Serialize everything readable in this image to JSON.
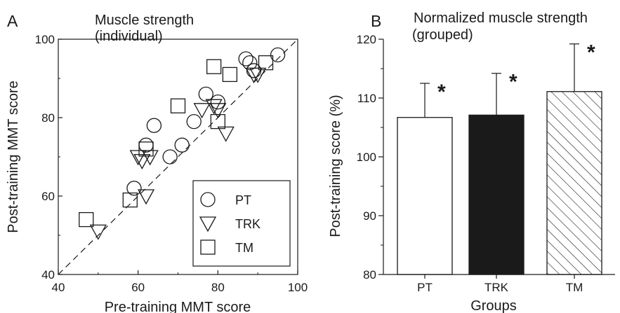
{
  "chart_data": [
    {
      "panel": "A",
      "type": "scatter",
      "title": "Muscle strength",
      "subtitle": "(individual)",
      "xlabel": "Pre-training MMT score",
      "ylabel": "Post-training MMT score",
      "xlim": [
        40,
        100
      ],
      "ylim": [
        40,
        100
      ],
      "xticks": [
        "40",
        "60",
        "80",
        "100"
      ],
      "yticks": [
        "40",
        "60",
        "80",
        "100"
      ],
      "identity_line": true,
      "legend_position": "bottom-right",
      "series": [
        {
          "name": "PT",
          "marker": "circle",
          "points": [
            [
              59,
              62
            ],
            [
              62,
              73
            ],
            [
              64,
              78
            ],
            [
              68,
              70
            ],
            [
              71,
              73
            ],
            [
              74,
              79
            ],
            [
              77,
              86
            ],
            [
              80,
              84
            ],
            [
              87,
              95
            ],
            [
              88,
              94
            ],
            [
              89,
              92
            ],
            [
              95,
              96
            ]
          ]
        },
        {
          "name": "TRK",
          "marker": "triangle-down",
          "points": [
            [
              50,
              51
            ],
            [
              60,
              70
            ],
            [
              61,
              69
            ],
            [
              62,
              60
            ],
            [
              63,
              70
            ],
            [
              76,
              82
            ],
            [
              79,
              83
            ],
            [
              80,
              82
            ],
            [
              82,
              76
            ],
            [
              89,
              91
            ],
            [
              90,
              91
            ]
          ]
        },
        {
          "name": "TM",
          "marker": "square",
          "points": [
            [
              47,
              54
            ],
            [
              58,
              59
            ],
            [
              62,
              72
            ],
            [
              70,
              83
            ],
            [
              79,
              93
            ],
            [
              80,
              79
            ],
            [
              83,
              91
            ],
            [
              92,
              94
            ]
          ]
        }
      ]
    },
    {
      "panel": "B",
      "type": "bar",
      "title": "Normalized muscle strength",
      "subtitle": "(grouped)",
      "xlabel": "Groups",
      "ylabel": "Post-training score (%)",
      "ylim": [
        80,
        120
      ],
      "yticks": [
        "80",
        "90",
        "100",
        "110",
        "120"
      ],
      "categories": [
        "PT",
        "TRK",
        "TM"
      ],
      "values": [
        106.7,
        107.1,
        111.1
      ],
      "errors": [
        5.8,
        7.1,
        8.1
      ],
      "fills": [
        "white",
        "black",
        "hatched"
      ],
      "significance": [
        "*",
        "*",
        "*"
      ]
    }
  ]
}
